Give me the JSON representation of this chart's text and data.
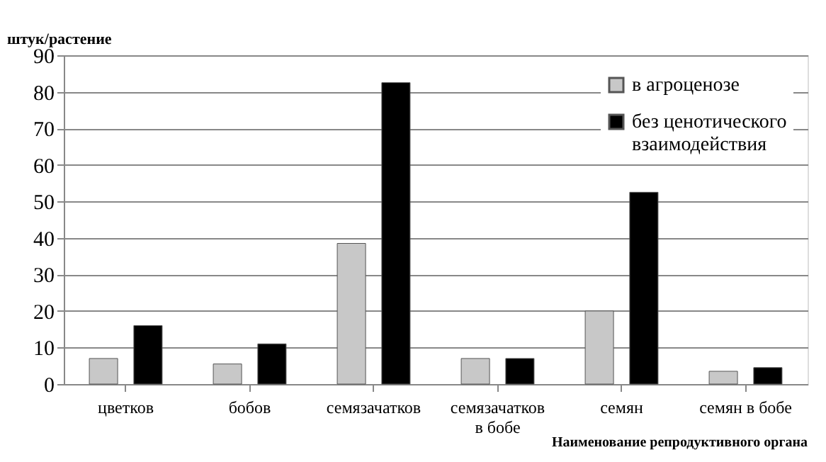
{
  "chart_data": {
    "type": "bar",
    "ylabel": "штук/растение",
    "xlabel": "Наименование репродуктивного органа",
    "categories": [
      "цветков",
      "бобов",
      "семязачатков",
      "семязачатков\nв бобе",
      "семян",
      "семян в бобе"
    ],
    "series": [
      {
        "name": "в агроценозе",
        "color": "#c8c8c8",
        "values": [
          7,
          5.5,
          38.5,
          7,
          20,
          3.5
        ]
      },
      {
        "name": "без ценотического\nвзаимодействия",
        "color": "#000000",
        "values": [
          16,
          11,
          82.5,
          7,
          52.5,
          4.5
        ]
      }
    ],
    "ylim": [
      0,
      90
    ],
    "yticks": [
      0,
      10,
      20,
      30,
      40,
      50,
      60,
      70,
      80,
      90
    ],
    "grid": "y",
    "legend": "top right"
  }
}
